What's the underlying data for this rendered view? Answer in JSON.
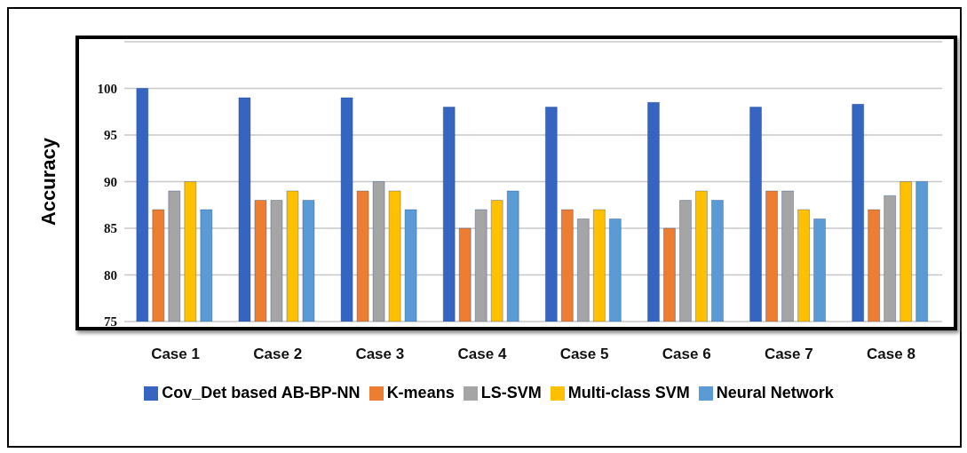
{
  "chart_data": {
    "type": "bar",
    "ylabel": "Accuracy",
    "categories": [
      "Case 1",
      "Case 2",
      "Case 3",
      "Case 4",
      "Case 5",
      "Case 6",
      "Case 7",
      "Case 8"
    ],
    "series": [
      {
        "name": "Cov_Det based AB-BP-NN",
        "color": "#3565c0",
        "values": [
          100,
          99,
          99,
          98,
          98,
          98.5,
          98,
          98.3
        ]
      },
      {
        "name": "K-means",
        "color": "#ed7d31",
        "values": [
          87,
          88,
          89,
          85,
          87,
          85,
          89,
          87
        ]
      },
      {
        "name": "LS-SVM",
        "color": "#a5a5a5",
        "values": [
          89,
          88,
          90,
          87,
          86,
          88,
          89,
          88.5
        ]
      },
      {
        "name": "Multi-class SVM",
        "color": "#ffc000",
        "values": [
          90,
          89,
          89,
          88,
          87,
          89,
          87,
          90
        ]
      },
      {
        "name": "Neural Network",
        "color": "#5b9bd5",
        "values": [
          87,
          88,
          87,
          89,
          86,
          88,
          86,
          90
        ]
      }
    ],
    "ylim": [
      75,
      105
    ],
    "yticks": [
      75,
      80,
      85,
      90,
      95,
      100
    ],
    "grid": "y",
    "legend": "bottom"
  }
}
